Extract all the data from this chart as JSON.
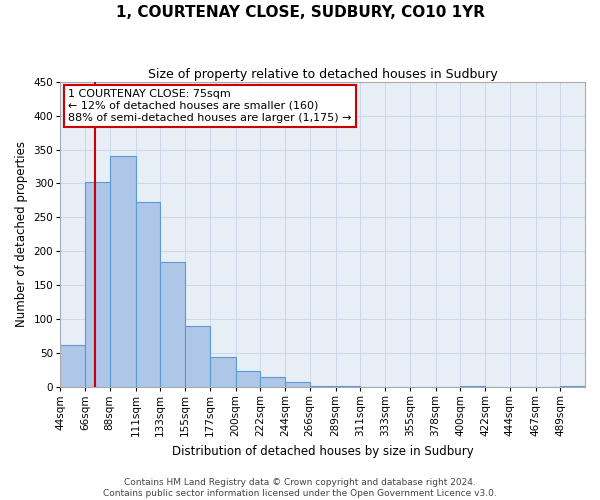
{
  "title": "1, COURTENAY CLOSE, SUDBURY, CO10 1YR",
  "subtitle": "Size of property relative to detached houses in Sudbury",
  "xlabel": "Distribution of detached houses by size in Sudbury",
  "ylabel": "Number of detached properties",
  "bin_labels": [
    "44sqm",
    "66sqm",
    "88sqm",
    "111sqm",
    "133sqm",
    "155sqm",
    "177sqm",
    "200sqm",
    "222sqm",
    "244sqm",
    "266sqm",
    "289sqm",
    "311sqm",
    "333sqm",
    "355sqm",
    "378sqm",
    "400sqm",
    "422sqm",
    "444sqm",
    "467sqm",
    "489sqm"
  ],
  "bar_values": [
    62,
    302,
    340,
    273,
    184,
    90,
    45,
    24,
    15,
    7,
    2,
    2,
    0,
    0,
    0,
    0,
    2,
    0,
    0,
    0,
    2
  ],
  "bar_color": "#aec6e8",
  "bar_edge_color": "#5b9bd5",
  "ylim": [
    0,
    450
  ],
  "yticks": [
    0,
    50,
    100,
    150,
    200,
    250,
    300,
    350,
    400,
    450
  ],
  "property_line_x": 75,
  "property_line_color": "#cc0000",
  "annotation_title": "1 COURTENAY CLOSE: 75sqm",
  "annotation_line1": "← 12% of detached houses are smaller (160)",
  "annotation_line2": "88% of semi-detached houses are larger (1,175) →",
  "annotation_box_color": "#ffffff",
  "annotation_box_edge": "#cc0000",
  "footer_line1": "Contains HM Land Registry data © Crown copyright and database right 2024.",
  "footer_line2": "Contains public sector information licensed under the Open Government Licence v3.0.",
  "bin_edges": [
    44,
    66,
    88,
    111,
    133,
    155,
    177,
    200,
    222,
    244,
    266,
    289,
    311,
    333,
    355,
    378,
    400,
    422,
    444,
    467,
    489,
    511
  ],
  "bg_color": "#e8eef5",
  "fig_bg_color": "#ffffff",
  "title_fontsize": 11,
  "subtitle_fontsize": 9,
  "axis_label_fontsize": 8.5,
  "tick_fontsize": 7.5,
  "annotation_fontsize": 8,
  "footer_fontsize": 6.5
}
